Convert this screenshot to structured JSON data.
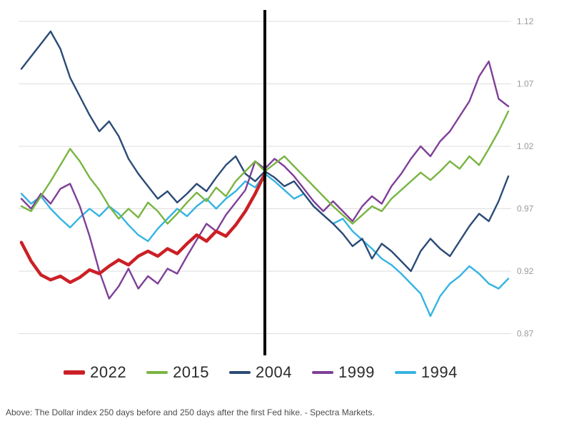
{
  "caption": "Above: The Dollar index 250 days before and 250 days after the first Fed hike. - Spectra Markets.",
  "colors": {
    "background": "#ffffff",
    "grid": "#dedede",
    "axis_text": "#9b9b9b",
    "event_line": "#000000",
    "legend_text": "#2b2b2b"
  },
  "chart_data": {
    "type": "line",
    "title": "",
    "xlabel": "",
    "ylabel": "",
    "x_range": [
      -250,
      250
    ],
    "x_step": 10,
    "ylim": [
      0.855,
      1.13
    ],
    "y_ticks": [
      1.12,
      1.07,
      1.02,
      0.97,
      0.92,
      0.87
    ],
    "grid": "horizontal",
    "legend_position": "bottom",
    "event_line_x": 0,
    "series": [
      {
        "name": "2022",
        "color": "#cb2026",
        "width": 4.5,
        "x_start": -250,
        "values": [
          0.943,
          0.928,
          0.917,
          0.913,
          0.916,
          0.911,
          0.915,
          0.921,
          0.918,
          0.924,
          0.929,
          0.925,
          0.932,
          0.936,
          0.932,
          0.938,
          0.934,
          0.942,
          0.949,
          0.944,
          0.952,
          0.948,
          0.957,
          0.968,
          0.982,
          0.998
        ]
      },
      {
        "name": "2015",
        "color": "#79b542",
        "width": 2.4,
        "x_start": -250,
        "values": [
          0.972,
          0.968,
          0.98,
          0.992,
          1.005,
          1.018,
          1.008,
          0.995,
          0.985,
          0.972,
          0.962,
          0.97,
          0.963,
          0.975,
          0.968,
          0.958,
          0.966,
          0.975,
          0.983,
          0.976,
          0.987,
          0.98,
          0.992,
          1.0,
          1.008,
          1.0,
          1.006,
          1.012,
          1.004,
          0.996,
          0.988,
          0.98,
          0.972,
          0.965,
          0.958,
          0.965,
          0.972,
          0.968,
          0.978,
          0.985,
          0.992,
          0.999,
          0.993,
          1.0,
          1.008,
          1.002,
          1.012,
          1.005,
          1.018,
          1.032,
          1.048
        ]
      },
      {
        "name": "2004",
        "color": "#2b4b77",
        "width": 2.4,
        "x_start": -250,
        "values": [
          1.082,
          1.092,
          1.102,
          1.112,
          1.098,
          1.075,
          1.06,
          1.045,
          1.032,
          1.04,
          1.028,
          1.01,
          0.998,
          0.988,
          0.978,
          0.984,
          0.975,
          0.982,
          0.99,
          0.984,
          0.995,
          1.005,
          1.012,
          0.998,
          0.992,
          1.0,
          0.995,
          0.988,
          0.992,
          0.982,
          0.972,
          0.965,
          0.958,
          0.95,
          0.94,
          0.946,
          0.93,
          0.942,
          0.936,
          0.928,
          0.92,
          0.936,
          0.946,
          0.938,
          0.932,
          0.944,
          0.956,
          0.966,
          0.96,
          0.976,
          0.996
        ]
      },
      {
        "name": "1999",
        "color": "#7f3f98",
        "width": 2.4,
        "x_start": -250,
        "values": [
          0.978,
          0.97,
          0.982,
          0.974,
          0.986,
          0.99,
          0.972,
          0.948,
          0.92,
          0.898,
          0.908,
          0.922,
          0.906,
          0.916,
          0.91,
          0.922,
          0.918,
          0.932,
          0.945,
          0.958,
          0.952,
          0.965,
          0.975,
          0.985,
          1.008,
          1.002,
          1.01,
          1.004,
          0.996,
          0.986,
          0.976,
          0.968,
          0.976,
          0.968,
          0.96,
          0.972,
          0.98,
          0.974,
          0.988,
          0.998,
          1.01,
          1.02,
          1.012,
          1.024,
          1.032,
          1.044,
          1.056,
          1.076,
          1.088,
          1.058,
          1.052
        ]
      },
      {
        "name": "1994",
        "color": "#35b4e2",
        "width": 2.4,
        "x_start": -250,
        "values": [
          0.982,
          0.974,
          0.98,
          0.97,
          0.962,
          0.955,
          0.963,
          0.97,
          0.964,
          0.972,
          0.966,
          0.957,
          0.949,
          0.944,
          0.954,
          0.962,
          0.97,
          0.964,
          0.972,
          0.978,
          0.97,
          0.978,
          0.984,
          0.992,
          0.987,
          0.998,
          0.992,
          0.985,
          0.978,
          0.982,
          0.972,
          0.965,
          0.958,
          0.962,
          0.952,
          0.945,
          0.938,
          0.93,
          0.925,
          0.918,
          0.91,
          0.902,
          0.884,
          0.9,
          0.91,
          0.916,
          0.924,
          0.918,
          0.91,
          0.906,
          0.914
        ]
      }
    ]
  }
}
